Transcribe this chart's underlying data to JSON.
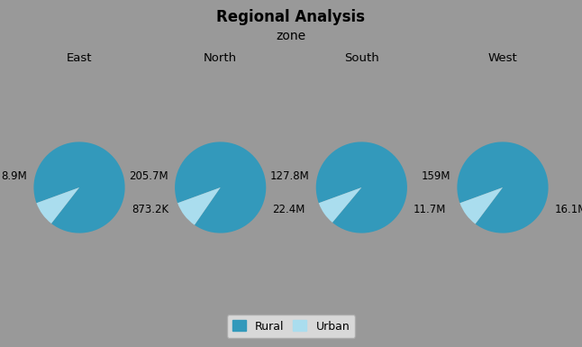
{
  "title": "Regional Analysis",
  "col_var": "zone",
  "zones": [
    "East",
    "North",
    "South",
    "West"
  ],
  "rural_values": [
    8900000,
    205700000,
    127800000,
    159000000
  ],
  "urban_values": [
    873200,
    22400000,
    11700000,
    16100000
  ],
  "rural_labels": [
    "8.9M",
    "205.7M",
    "127.8M",
    "159M"
  ],
  "urban_labels": [
    "873.2K",
    "22.4M",
    "11.7M",
    "16.1M"
  ],
  "rural_color": "#3399bb",
  "urban_color": "#aaddee",
  "bg_color": "#999999",
  "title_border_color": "#cccccc",
  "grid_line_color": "#cccccc",
  "label_fontsize": 8.5,
  "title_fontsize": 12,
  "zone_label_fontsize": 10,
  "col_header_fontsize": 9.5,
  "legend_fontsize": 9
}
